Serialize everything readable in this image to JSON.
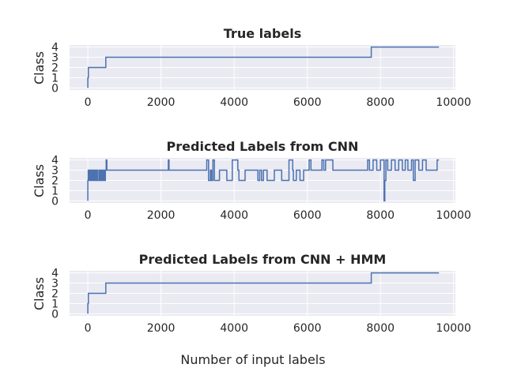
{
  "figure": {
    "xlabel": "Number of input labels",
    "background": "#ffffff",
    "axes_facecolor": "#eaeaf2",
    "grid_color": "#ffffff",
    "line_color": "#4c72b0"
  },
  "chart_data": [
    {
      "type": "line",
      "title": "True labels",
      "ylabel": "Class",
      "xlim": [
        -500,
        10050
      ],
      "ylim": [
        -0.2,
        4.2
      ],
      "xticks": [
        0,
        2000,
        4000,
        6000,
        8000,
        10000
      ],
      "xtick_labels": [
        "0",
        "2000",
        "4000",
        "6000",
        "8000",
        "10000"
      ],
      "yticks": [
        0,
        1,
        2,
        3,
        4
      ],
      "ytick_labels": [
        "0",
        "1",
        "2",
        "3",
        "4"
      ],
      "grid": true,
      "series": [
        {
          "x": [
            0,
            0,
            15,
            15,
            40,
            40,
            490,
            490,
            7750,
            7750,
            9600
          ],
          "y": [
            0,
            1,
            1,
            2,
            2,
            2,
            2,
            3,
            3,
            4,
            4
          ]
        }
      ]
    },
    {
      "type": "line",
      "title": "Predicted Labels from CNN",
      "ylabel": "Class",
      "xlim": [
        -500,
        10050
      ],
      "ylim": [
        -0.2,
        4.2
      ],
      "xticks": [
        0,
        2000,
        4000,
        6000,
        8000,
        10000
      ],
      "xtick_labels": [
        "0",
        "2000",
        "4000",
        "6000",
        "8000",
        "10000"
      ],
      "yticks": [
        0,
        1,
        2,
        3,
        4
      ],
      "ytick_labels": [
        "0",
        "1",
        "2",
        "3",
        "4"
      ],
      "grid": true,
      "series": [
        {
          "x": [
            0,
            0,
            10,
            10,
            20,
            20,
            30,
            30,
            50,
            50,
            60,
            60,
            80,
            80,
            100,
            100,
            120,
            120,
            140,
            140,
            160,
            160,
            180,
            180,
            200,
            200,
            230,
            230,
            260,
            260,
            300,
            300,
            330,
            330,
            360,
            360,
            380,
            380,
            400,
            400,
            420,
            420,
            440,
            440,
            460,
            460,
            480,
            480,
            500,
            500,
            520,
            520,
            2200,
            2200,
            2220,
            2220,
            3250,
            3250,
            3300,
            3300,
            3350,
            3350,
            3380,
            3380,
            3420,
            3420,
            3460,
            3460,
            3600,
            3600,
            3800,
            3800,
            3950,
            3950,
            4100,
            4100,
            4130,
            4130,
            4300,
            4300,
            4650,
            4650,
            4700,
            4700,
            4750,
            4750,
            4800,
            4800,
            4900,
            4900,
            5100,
            5100,
            5300,
            5300,
            5500,
            5500,
            5600,
            5600,
            5620,
            5620,
            5700,
            5700,
            5800,
            5800,
            5900,
            5900,
            6050,
            6050,
            6100,
            6100,
            6400,
            6400,
            6450,
            6450,
            6500,
            6500,
            6700,
            6700,
            7650,
            7650,
            7700,
            7700,
            7800,
            7800,
            7900,
            7900,
            8000,
            8000,
            8100,
            8100,
            8120,
            8120,
            8150,
            8150,
            8200,
            8200,
            8300,
            8300,
            8400,
            8400,
            8500,
            8500,
            8600,
            8600,
            8680,
            8680,
            8750,
            8750,
            8850,
            8850,
            8900,
            8900,
            8950,
            8950,
            9050,
            9050,
            9150,
            9150,
            9250,
            9250,
            9550,
            9550,
            9600
          ],
          "y": [
            0,
            2,
            2,
            3,
            3,
            2,
            2,
            3,
            3,
            2,
            2,
            3,
            3,
            2,
            2,
            3,
            3,
            2,
            2,
            3,
            3,
            2,
            2,
            3,
            3,
            2,
            2,
            3,
            3,
            2,
            2,
            3,
            3,
            2,
            2,
            3,
            3,
            2,
            2,
            3,
            3,
            2,
            2,
            3,
            3,
            2,
            2,
            3,
            3,
            4,
            4,
            3,
            3,
            4,
            4,
            3,
            3,
            4,
            4,
            2,
            2,
            3,
            3,
            2,
            2,
            4,
            4,
            2,
            2,
            3,
            3,
            2,
            2,
            4,
            4,
            3,
            3,
            2,
            2,
            3,
            3,
            2,
            2,
            3,
            3,
            2,
            2,
            3,
            3,
            2,
            2,
            3,
            3,
            2,
            2,
            4,
            4,
            3,
            3,
            2,
            2,
            3,
            3,
            2,
            2,
            3,
            3,
            4,
            4,
            3,
            3,
            4,
            4,
            3,
            3,
            4,
            4,
            3,
            3,
            4,
            4,
            3,
            3,
            4,
            4,
            3,
            3,
            4,
            4,
            0,
            0,
            2,
            2,
            4,
            4,
            3,
            3,
            4,
            4,
            3,
            3,
            4,
            4,
            3,
            3,
            4,
            4,
            3,
            3,
            4,
            4,
            2,
            2,
            4,
            4,
            3,
            3,
            4,
            4,
            3,
            3,
            4,
            4
          ]
        }
      ]
    },
    {
      "type": "line",
      "title": "Predicted Labels from CNN + HMM",
      "ylabel": "Class",
      "xlim": [
        -500,
        10050
      ],
      "ylim": [
        -0.2,
        4.2
      ],
      "xticks": [
        0,
        2000,
        4000,
        6000,
        8000,
        10000
      ],
      "xtick_labels": [
        "0",
        "2000",
        "4000",
        "6000",
        "8000",
        "10000"
      ],
      "yticks": [
        0,
        1,
        2,
        3,
        4
      ],
      "ytick_labels": [
        "0",
        "1",
        "2",
        "3",
        "4"
      ],
      "grid": true,
      "series": [
        {
          "x": [
            0,
            0,
            15,
            15,
            40,
            40,
            490,
            490,
            7750,
            7750,
            9600
          ],
          "y": [
            0,
            1,
            1,
            2,
            2,
            2,
            2,
            3,
            3,
            4,
            4
          ]
        }
      ]
    }
  ]
}
